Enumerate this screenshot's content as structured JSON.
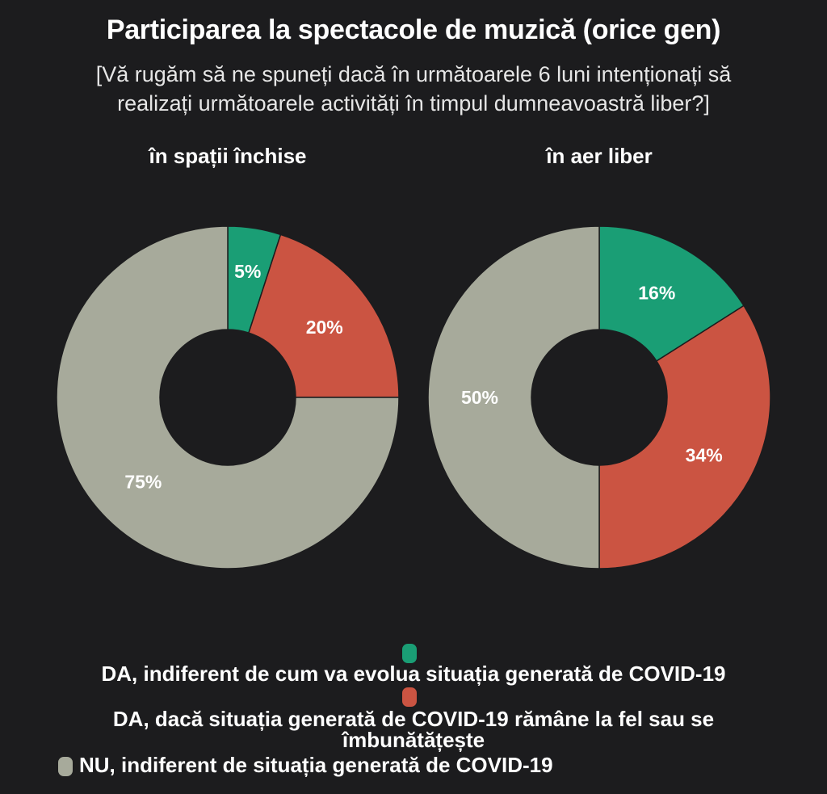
{
  "title": "Participarea la spectacole de muzică (orice gen)",
  "subtitle_lines": [
    "[Vă rugăm să ne spuneți dacă în următoarele 6 luni intenționați să",
    "realizați următoarele activități în timpul dumneavoastră liber?]"
  ],
  "colors": {
    "da_indiferent": "#1a9e75",
    "da_daca": "#cb5442",
    "nu": "#a7aa9b",
    "background": "#1c1c1e"
  },
  "legend": [
    {
      "label": "DA, indiferent de cum va evolua situația generată de COVID-19",
      "color_key": "da_indiferent"
    },
    {
      "label": "DA, dacă situația generată de COVID-19 rămâne la fel sau se",
      "label_line2": "îmbunătățește",
      "color_key": "da_daca"
    },
    {
      "label": "NU, indiferent de situația generată de COVID-19",
      "color_key": "nu"
    }
  ],
  "chart_data": [
    {
      "type": "pie",
      "title": "în spații închise",
      "series_labels": [
        "DA, indiferent de cum va evolua situația generată de COVID-19",
        "DA, dacă situația generată de COVID-19 rămâne la fel sau se îmbunătățește",
        "NU, indiferent de situația generată de COVID-19"
      ],
      "values": [
        5,
        20,
        75
      ],
      "value_labels": [
        "5%",
        "20%",
        "75%"
      ],
      "donut": true
    },
    {
      "type": "pie",
      "title": "în aer liber",
      "series_labels": [
        "DA, indiferent de cum va evolua situația generată de COVID-19",
        "DA, dacă situația generată de COVID-19 rămâne la fel sau se îmbunătățește",
        "NU, indiferent de situația generată de COVID-19"
      ],
      "values": [
        16,
        34,
        50
      ],
      "value_labels": [
        "16%",
        "34%",
        "50%"
      ],
      "donut": true
    }
  ]
}
